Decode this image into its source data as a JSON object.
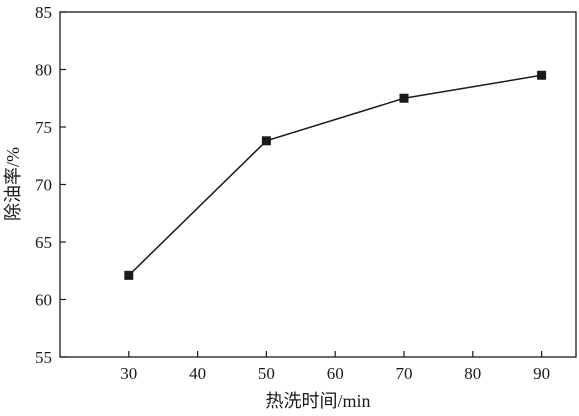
{
  "chart_data": {
    "type": "line",
    "x": [
      30,
      50,
      70,
      90
    ],
    "series": [
      {
        "values": [
          62.1,
          73.8,
          77.5,
          79.5
        ],
        "marker": "square",
        "color": "#1a1a1a"
      }
    ],
    "xlabel": "热洗时间/min",
    "ylabel": "除油率/%",
    "xlim": [
      20,
      95
    ],
    "ylim": [
      55,
      85
    ],
    "xticks": [
      30,
      40,
      50,
      60,
      70,
      80,
      90
    ],
    "yticks": [
      55,
      60,
      65,
      70,
      75,
      80,
      85
    ],
    "grid": false,
    "legend": "none"
  }
}
